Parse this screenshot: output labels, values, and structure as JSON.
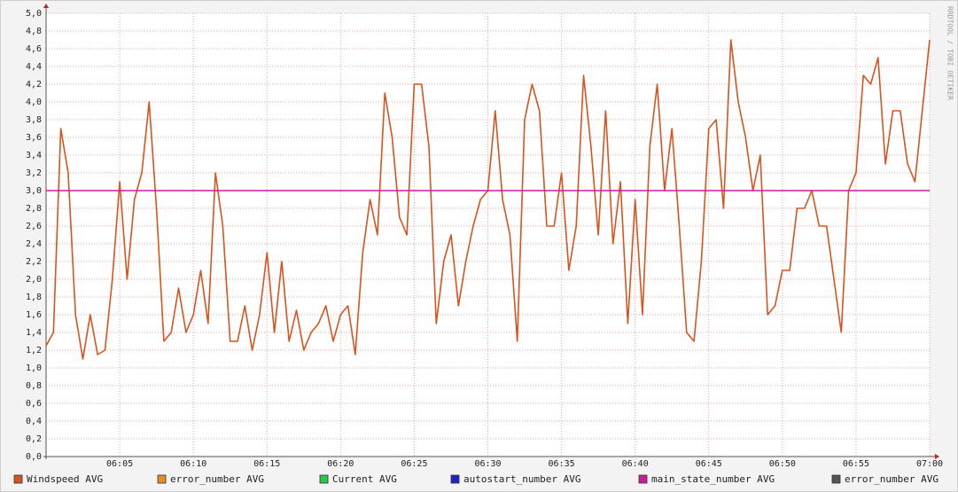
{
  "chart_data": {
    "type": "line",
    "watermark": "RRDTOOL / TOBI OETIKER",
    "x": [
      0,
      0.5,
      1,
      1.5,
      2,
      2.5,
      3,
      3.5,
      4,
      4.5,
      5,
      5.5,
      6,
      6.5,
      7,
      7.5,
      8,
      8.5,
      9,
      9.5,
      10,
      10.5,
      11,
      11.5,
      12,
      12.5,
      13,
      13.5,
      14,
      14.5,
      15,
      15.5,
      16,
      16.5,
      17,
      17.5,
      18,
      18.5,
      19,
      19.5,
      20,
      20.5,
      21,
      21.5,
      22,
      22.5,
      23,
      23.5,
      24,
      24.5,
      25,
      25.5,
      26,
      26.5,
      27,
      27.5,
      28,
      28.5,
      29,
      29.5,
      30,
      30.5,
      31,
      31.5,
      32,
      32.5,
      33,
      33.5,
      34,
      34.5,
      35,
      35.5,
      36,
      36.5,
      37,
      37.5,
      38,
      38.5,
      39,
      39.5,
      40,
      40.5,
      41,
      41.5,
      42,
      42.5,
      43,
      43.5,
      44,
      44.5,
      45,
      45.5,
      46,
      46.5,
      47,
      47.5,
      48,
      48.5,
      49,
      49.5,
      50,
      50.5,
      51,
      51.5,
      52,
      52.5,
      53,
      53.5,
      54,
      54.5,
      55,
      55.5,
      56,
      56.5,
      57,
      57.5,
      58,
      58.5,
      59,
      59.5,
      60
    ],
    "series": [
      {
        "name": "Windspeed AVG",
        "color": "#d9531e",
        "values": [
          1.25,
          1.4,
          3.7,
          3.2,
          1.6,
          1.1,
          1.6,
          1.15,
          1.2,
          2.0,
          3.1,
          2.0,
          2.9,
          3.2,
          4.0,
          2.8,
          1.3,
          1.4,
          1.9,
          1.4,
          1.6,
          2.1,
          1.5,
          3.2,
          2.6,
          1.3,
          1.3,
          1.7,
          1.2,
          1.6,
          2.3,
          1.4,
          2.2,
          1.3,
          1.65,
          1.2,
          1.4,
          1.5,
          1.7,
          1.3,
          1.6,
          1.7,
          1.15,
          2.3,
          2.9,
          2.5,
          4.1,
          3.6,
          2.7,
          2.5,
          4.2,
          4.2,
          3.5,
          1.5,
          2.2,
          2.5,
          1.7,
          2.2,
          2.6,
          2.9,
          3.0,
          3.9,
          2.9,
          2.5,
          1.3,
          3.8,
          4.2,
          3.9,
          2.6,
          2.6,
          3.2,
          2.1,
          2.6,
          4.3,
          3.5,
          2.5,
          3.9,
          2.4,
          3.1,
          1.5,
          2.9,
          1.6,
          3.5,
          4.2,
          3.0,
          3.7,
          2.6,
          1.4,
          1.3,
          2.2,
          3.7,
          3.8,
          2.8,
          4.7,
          4.0,
          3.6,
          3.0,
          3.4,
          1.6,
          1.7,
          2.1,
          2.1,
          2.8,
          2.8,
          3.0,
          2.6,
          2.6,
          2.0,
          1.4,
          3.0,
          3.2,
          4.3,
          4.2,
          4.5,
          3.3,
          3.9,
          3.9,
          3.3,
          3.1,
          3.9,
          4.7
        ]
      },
      {
        "name": "error_number AVG",
        "color": "#e88d1e"
      },
      {
        "name": "Current AVG",
        "color": "#22cc44"
      },
      {
        "name": "autostart_number AVG",
        "color": "#2222cc"
      },
      {
        "name": "main_state_number AVG",
        "color": "#cc1aa0",
        "x": [
          0,
          60
        ],
        "values": [
          3,
          3
        ]
      },
      {
        "name": "error_number AVG",
        "color": "#555555"
      }
    ],
    "xlim": [
      0,
      60
    ],
    "xticks": [
      {
        "value": 5,
        "label": "06:05"
      },
      {
        "value": 10,
        "label": "06:10"
      },
      {
        "value": 15,
        "label": "06:15"
      },
      {
        "value": 20,
        "label": "06:20"
      },
      {
        "value": 25,
        "label": "06:25"
      },
      {
        "value": 30,
        "label": "06:30"
      },
      {
        "value": 35,
        "label": "06:35"
      },
      {
        "value": 40,
        "label": "06:40"
      },
      {
        "value": 45,
        "label": "06:45"
      },
      {
        "value": 50,
        "label": "06:50"
      },
      {
        "value": 55,
        "label": "06:55"
      },
      {
        "value": 60,
        "label": "07:00"
      }
    ],
    "ylim": [
      0,
      5
    ],
    "yticks": [
      {
        "value": 0,
        "label": "0,0"
      },
      {
        "value": 0.2,
        "label": "0,2"
      },
      {
        "value": 0.4,
        "label": "0,4"
      },
      {
        "value": 0.6,
        "label": "0,6"
      },
      {
        "value": 0.8,
        "label": "0,8"
      },
      {
        "value": 1,
        "label": "1,0"
      },
      {
        "value": 1.2,
        "label": "1,2"
      },
      {
        "value": 1.4,
        "label": "1,4"
      },
      {
        "value": 1.6,
        "label": "1,6"
      },
      {
        "value": 1.8,
        "label": "1,8"
      },
      {
        "value": 2,
        "label": "2,0"
      },
      {
        "value": 2.2,
        "label": "2,2"
      },
      {
        "value": 2.4,
        "label": "2,4"
      },
      {
        "value": 2.6,
        "label": "2,6"
      },
      {
        "value": 2.8,
        "label": "2,8"
      },
      {
        "value": 3,
        "label": "3,0"
      },
      {
        "value": 3.2,
        "label": "3,2"
      },
      {
        "value": 3.4,
        "label": "3,4"
      },
      {
        "value": 3.6,
        "label": "3,6"
      },
      {
        "value": 3.8,
        "label": "3,8"
      },
      {
        "value": 4,
        "label": "4,0"
      },
      {
        "value": 4.2,
        "label": "4,2"
      },
      {
        "value": 4.4,
        "label": "4,4"
      },
      {
        "value": 4.6,
        "label": "4,6"
      },
      {
        "value": 4.8,
        "label": "4,8"
      },
      {
        "value": 5,
        "label": "5,0"
      }
    ],
    "grid": true
  }
}
